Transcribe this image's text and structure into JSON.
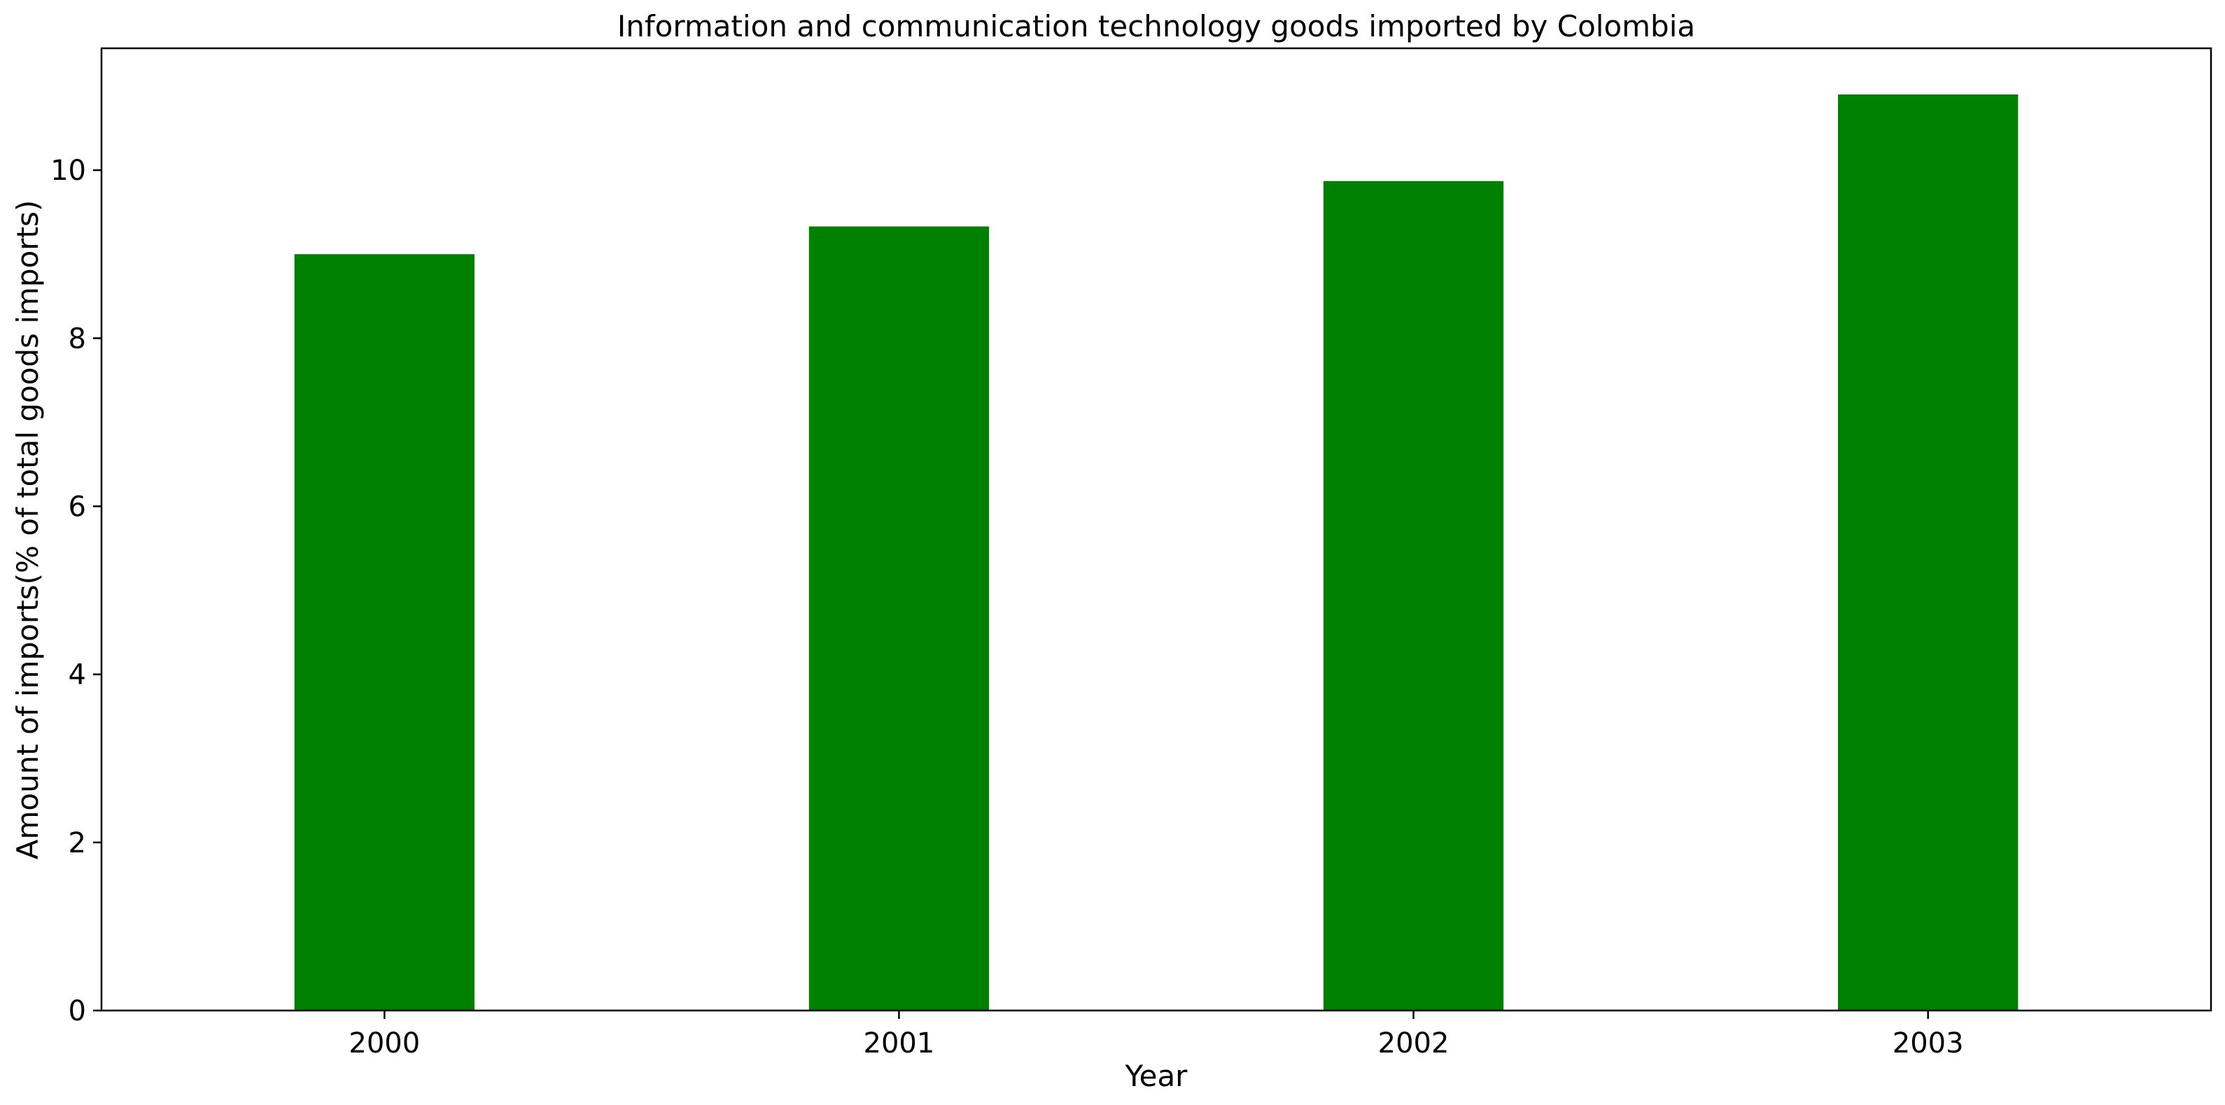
{
  "chart_data": {
    "type": "bar",
    "title": "Information and communication technology goods imported by Colombia",
    "xlabel": "Year",
    "ylabel": "Amount of imports(% of total goods imports)",
    "categories": [
      "2000",
      "2001",
      "2002",
      "2003"
    ],
    "series": [
      {
        "values": [
          9.0,
          9.33,
          9.87,
          10.9
        ],
        "color": "#008000"
      }
    ],
    "ylim": [
      0,
      11.45
    ],
    "yticks": [
      0,
      2,
      4,
      6,
      8,
      10
    ],
    "grid": false,
    "legend": "none"
  }
}
